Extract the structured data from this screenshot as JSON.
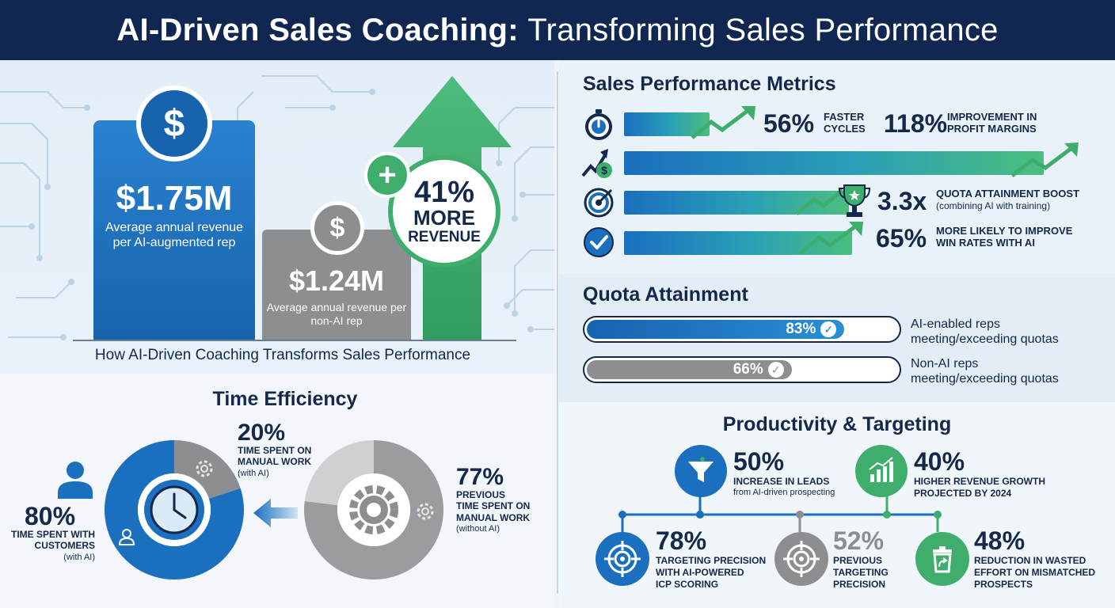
{
  "header": {
    "title_bold": "AI-Driven Sales Coaching:",
    "title_rest": "Transforming Sales Performance"
  },
  "revenue": {
    "ai_value": "$1.75M",
    "ai_desc": "Average annual revenue per AI-augmented rep",
    "nonai_value": "$1.24M",
    "nonai_desc": "Average annual revenue per non-AI rep",
    "growth_pct": "41%",
    "growth_line1": "MORE",
    "growth_line2": "REVENUE",
    "plus": "+",
    "dollar": "$",
    "caption": "How AI-Driven Coaching Transforms Sales Performance"
  },
  "time": {
    "title": "Time Efficiency",
    "ai_manual_pct": "20%",
    "ai_manual_label_1": "TIME SPENT ON",
    "ai_manual_label_2": "MANUAL WORK",
    "ai_manual_sub": "(with AI)",
    "customers_pct": "80%",
    "customers_label_1": "TIME SPENT WITH",
    "customers_label_2": "CUSTOMERS",
    "customers_sub": "(with AI)",
    "prev_manual_pct": "77%",
    "prev_label_1": "PREVIOUS",
    "prev_label_2": "TIME SPENT ON",
    "prev_label_3": "MANUAL WORK",
    "prev_sub": "(without AI)",
    "donut_ai": {
      "customers_fraction": 0.8,
      "manual_fraction": 0.2
    },
    "donut_prev": {
      "manual_fraction": 0.77
    }
  },
  "metrics": {
    "title": "Sales Performance Metrics",
    "rows": [
      {
        "icon": "stopwatch-icon",
        "num": "56%",
        "label_1": "FASTER",
        "label_2": "CYCLES"
      },
      {
        "icon": "growth-dollar-icon",
        "num": "118%",
        "label_1": "IMPROVEMENT IN",
        "label_2": "PROFIT MARGINS"
      },
      {
        "icon": "target-icon",
        "num": "3.3x",
        "label_1": "QUOTA ATTAINMENT BOOST",
        "label_2": "(combining AI with training)"
      },
      {
        "icon": "checkmark-icon",
        "num": "65%",
        "label_1": "MORE LIKELY TO IMPROVE",
        "label_2": "WIN RATES WITH AI"
      }
    ]
  },
  "quota": {
    "title": "Quota Attainment",
    "ai": {
      "pct": "83%",
      "fraction": 0.83,
      "label_1": "AI-enabled reps",
      "label_2": "meeting/exceeding quotas",
      "color": "#1a6fbf"
    },
    "nonai": {
      "pct": "66%",
      "fraction": 0.66,
      "label_1": "Non-AI reps",
      "label_2": "meeting/exceeding quotas",
      "color": "#8c8e92"
    }
  },
  "productivity": {
    "title": "Productivity & Targeting",
    "leads": {
      "num": "50%",
      "label": "INCREASE IN LEADS",
      "sub": "from AI-driven prospecting",
      "icon": "funnel-icon"
    },
    "growth": {
      "num": "40%",
      "label_1": "HIGHER REVENUE GROWTH",
      "label_2": "PROJECTED BY 2024",
      "icon": "bar-chart-icon"
    },
    "precision": {
      "num": "78%",
      "label_1": "TARGETING PRECISION",
      "label_2": "WITH AI-POWERED",
      "label_3": "ICP SCORING",
      "icon": "crosshair-icon"
    },
    "prev_precision": {
      "num": "52%",
      "label_1": "PREVIOUS",
      "label_2": "TARGETING",
      "label_3": "PRECISION",
      "icon": "crosshair-gray-icon"
    },
    "waste": {
      "num": "48%",
      "label_1": "REDUCTION IN WASTED",
      "label_2": "EFFORT ON MISMATCHED",
      "label_3": "PROSPECTS",
      "icon": "recycle-bin-icon"
    }
  },
  "colors": {
    "navy": "#0f2751",
    "blue": "#1a6fbf",
    "green": "#3fae6d",
    "gray": "#8c8e92"
  }
}
